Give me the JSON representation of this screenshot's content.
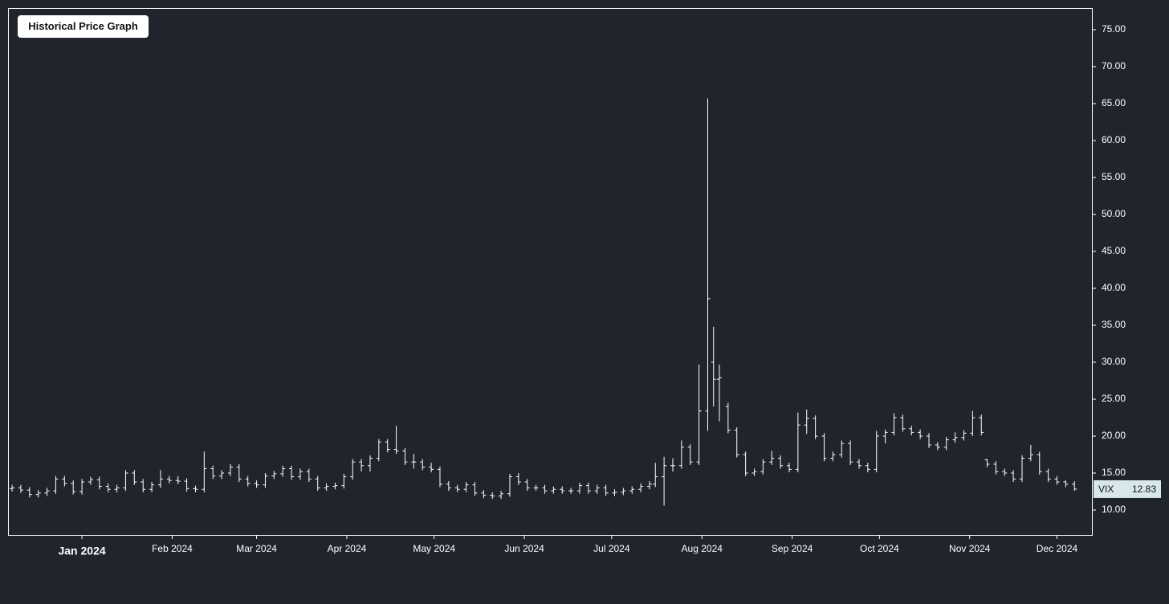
{
  "chart_data": {
    "type": "ohlc",
    "title": "Historical Price Graph",
    "series": [
      {
        "name": "VIX",
        "color": "#ffffff",
        "x": [
          -24,
          -21,
          -18,
          -15,
          -12,
          -9,
          -6,
          -3,
          0,
          3,
          6,
          9,
          12,
          15,
          18,
          21,
          24,
          27,
          30,
          33,
          36,
          39,
          42,
          45,
          48,
          51,
          54,
          57,
          60,
          63,
          66,
          69,
          72,
          75,
          78,
          81,
          84,
          87,
          90,
          93,
          96,
          99,
          102,
          105,
          108,
          111,
          114,
          117,
          120,
          123,
          126,
          129,
          132,
          135,
          138,
          141,
          144,
          147,
          150,
          153,
          156,
          159,
          162,
          165,
          168,
          171,
          174,
          177,
          180,
          183,
          186,
          189,
          192,
          195,
          197,
          200,
          203,
          206,
          209,
          212,
          215,
          217,
          219,
          222,
          225,
          228,
          231,
          234,
          237,
          240,
          243,
          246,
          249,
          252,
          255,
          258,
          261,
          264,
          267,
          270,
          273,
          276,
          279,
          282,
          285,
          288,
          291,
          294,
          297,
          300,
          303,
          306,
          309,
          311,
          314,
          317,
          320,
          323,
          326,
          329,
          332,
          335,
          338,
          341
        ],
        "open": [
          12.9,
          13.0,
          12.7,
          12.1,
          12.3,
          12.6,
          14.2,
          13.6,
          12.5,
          13.8,
          14.1,
          13.2,
          12.8,
          13.0,
          15.0,
          13.8,
          12.8,
          13.4,
          14.2,
          14.0,
          13.9,
          12.9,
          12.8,
          15.6,
          14.6,
          15.0,
          15.8,
          14.2,
          13.6,
          13.4,
          14.6,
          14.9,
          15.6,
          14.5,
          15.2,
          14.2,
          13.0,
          13.2,
          13.3,
          14.5,
          16.5,
          16.0,
          17.0,
          19.2,
          18.2,
          18.0,
          16.5,
          16.5,
          15.8,
          15.5,
          13.5,
          13.0,
          12.8,
          13.4,
          12.3,
          12.0,
          11.9,
          12.2,
          14.5,
          13.8,
          13.0,
          13.0,
          12.6,
          12.8,
          12.6,
          12.6,
          13.3,
          12.6,
          13.0,
          12.3,
          12.4,
          12.6,
          12.8,
          13.2,
          13.5,
          14.5,
          16.0,
          16.0,
          18.5,
          16.5,
          23.4,
          30.0,
          27.7,
          24.0,
          20.8,
          17.5,
          15.0,
          15.2,
          16.5,
          17.0,
          16.0,
          15.5,
          21.5,
          22.4,
          20.0,
          17.0,
          17.5,
          19.0,
          16.5,
          16.0,
          15.5,
          20.0,
          20.5,
          22.5,
          21.0,
          20.5,
          20.0,
          18.8,
          18.5,
          19.5,
          19.8,
          20.4,
          22.5,
          16.8,
          16.2,
          15.2,
          15.0,
          14.2,
          17.0,
          17.5,
          15.2,
          14.2,
          13.8,
          13.5
        ],
        "high": [
          13.4,
          13.4,
          13.1,
          12.7,
          13.0,
          14.6,
          14.6,
          14.0,
          14.2,
          14.5,
          14.5,
          13.6,
          13.4,
          15.4,
          15.4,
          14.2,
          13.8,
          15.4,
          14.6,
          14.6,
          14.3,
          13.3,
          17.9,
          16.0,
          15.4,
          16.2,
          16.2,
          14.6,
          14.0,
          15.0,
          15.3,
          16.0,
          16.0,
          15.6,
          15.6,
          14.6,
          13.6,
          13.7,
          14.9,
          16.9,
          16.9,
          17.4,
          19.6,
          19.6,
          21.4,
          18.4,
          17.6,
          16.9,
          16.4,
          15.9,
          13.9,
          13.4,
          13.8,
          13.8,
          12.7,
          12.4,
          12.6,
          14.9,
          15.0,
          14.2,
          13.4,
          13.4,
          13.2,
          13.2,
          13.0,
          13.7,
          13.7,
          13.4,
          13.4,
          12.8,
          13.0,
          13.2,
          13.6,
          13.9,
          16.4,
          17.2,
          17.0,
          19.4,
          18.9,
          29.7,
          65.7,
          34.8,
          29.7,
          24.5,
          21.2,
          17.9,
          15.6,
          16.9,
          18.0,
          17.4,
          16.4,
          23.2,
          23.6,
          22.8,
          20.4,
          17.9,
          19.4,
          19.4,
          16.9,
          16.4,
          20.7,
          20.9,
          23.1,
          22.9,
          21.4,
          20.9,
          20.4,
          19.2,
          19.9,
          20.5,
          20.8,
          23.4,
          22.9,
          16.9,
          16.6,
          15.6,
          15.4,
          17.4,
          18.8,
          17.9,
          15.6,
          14.6,
          14.0,
          13.9
        ],
        "low": [
          12.5,
          12.3,
          11.7,
          11.7,
          11.9,
          12.2,
          13.2,
          12.1,
          12.1,
          13.4,
          12.8,
          12.4,
          12.4,
          12.6,
          13.4,
          12.4,
          12.4,
          13.0,
          13.6,
          13.5,
          12.5,
          12.4,
          12.4,
          14.2,
          14.2,
          14.6,
          13.8,
          13.2,
          13.0,
          13.0,
          14.2,
          14.5,
          14.1,
          14.1,
          13.8,
          12.6,
          12.6,
          12.8,
          12.9,
          14.1,
          15.2,
          15.2,
          16.6,
          17.8,
          17.6,
          16.1,
          15.6,
          15.4,
          15.1,
          13.1,
          12.6,
          12.4,
          12.4,
          11.9,
          11.6,
          11.5,
          11.5,
          11.8,
          13.4,
          12.6,
          12.6,
          12.2,
          12.2,
          12.2,
          12.2,
          12.2,
          12.2,
          12.2,
          11.9,
          11.9,
          12.0,
          12.2,
          12.4,
          12.8,
          13.1,
          10.6,
          15.2,
          15.6,
          16.1,
          16.1,
          20.7,
          24.0,
          22.0,
          20.4,
          17.1,
          14.6,
          14.6,
          14.8,
          16.1,
          15.6,
          15.1,
          15.1,
          20.3,
          19.6,
          16.6,
          16.6,
          17.1,
          16.1,
          15.6,
          15.1,
          15.1,
          19.0,
          20.1,
          20.6,
          20.1,
          19.6,
          18.4,
          18.1,
          18.1,
          19.1,
          19.4,
          20.0,
          20.1,
          15.8,
          14.8,
          14.6,
          13.8,
          13.8,
          16.6,
          14.8,
          13.8,
          13.4,
          13.1,
          12.6
        ],
        "close": [
          13.0,
          12.7,
          12.1,
          12.3,
          12.6,
          14.2,
          13.6,
          12.5,
          13.8,
          14.1,
          13.2,
          12.8,
          13.0,
          15.0,
          13.8,
          12.8,
          13.4,
          14.2,
          14.0,
          13.9,
          12.9,
          12.8,
          15.6,
          14.6,
          15.0,
          15.8,
          14.2,
          13.6,
          13.4,
          14.6,
          14.9,
          15.6,
          14.5,
          15.2,
          14.2,
          13.0,
          13.2,
          13.3,
          14.5,
          16.5,
          16.0,
          17.0,
          19.2,
          18.2,
          18.0,
          16.5,
          16.5,
          15.8,
          15.5,
          13.5,
          13.0,
          12.8,
          13.4,
          12.3,
          12.0,
          11.9,
          12.2,
          14.5,
          13.8,
          13.0,
          13.0,
          12.6,
          12.8,
          12.6,
          12.6,
          13.3,
          12.6,
          13.0,
          12.3,
          12.4,
          12.6,
          12.8,
          13.2,
          13.5,
          14.5,
          16.0,
          16.0,
          18.5,
          16.5,
          23.4,
          38.6,
          27.7,
          27.9,
          20.8,
          17.5,
          15.0,
          15.2,
          16.5,
          17.0,
          16.0,
          15.5,
          21.5,
          22.4,
          20.0,
          17.0,
          17.5,
          19.0,
          16.5,
          16.0,
          15.5,
          20.0,
          20.5,
          22.5,
          21.0,
          20.5,
          20.0,
          18.8,
          18.5,
          19.5,
          19.8,
          20.4,
          22.5,
          20.5,
          16.2,
          15.2,
          15.0,
          14.2,
          17.0,
          17.5,
          15.2,
          14.2,
          13.8,
          13.5,
          12.83
        ]
      }
    ],
    "xlim": [
      -25.4,
      347
    ],
    "xticks": [
      {
        "value": 0,
        "label": "Jan 2024"
      },
      {
        "value": 31,
        "label": "Feb 2024"
      },
      {
        "value": 60,
        "label": "Mar 2024"
      },
      {
        "value": 91,
        "label": "Apr 2024"
      },
      {
        "value": 121,
        "label": "May 2024"
      },
      {
        "value": 152,
        "label": "Jun 2024"
      },
      {
        "value": 182,
        "label": "Jul 2024"
      },
      {
        "value": 213,
        "label": "Aug 2024"
      },
      {
        "value": 244,
        "label": "Sep 2024"
      },
      {
        "value": 274,
        "label": "Oct 2024"
      },
      {
        "value": 305,
        "label": "Nov 2024"
      },
      {
        "value": 335,
        "label": "Dec 2024"
      }
    ],
    "ylim": [
      6.63,
      77.93
    ],
    "yticks": [
      {
        "value": 10,
        "label": "10.00"
      },
      {
        "value": 15,
        "label": "15.00"
      },
      {
        "value": 20,
        "label": "20.00"
      },
      {
        "value": 25,
        "label": "25.00"
      },
      {
        "value": 30,
        "label": "30.00"
      },
      {
        "value": 35,
        "label": "35.00"
      },
      {
        "value": 40,
        "label": "40.00"
      },
      {
        "value": 45,
        "label": "45.00"
      },
      {
        "value": 50,
        "label": "50.00"
      },
      {
        "value": 55,
        "label": "55.00"
      },
      {
        "value": 60,
        "label": "60.00"
      },
      {
        "value": 65,
        "label": "65.00"
      },
      {
        "value": 70,
        "label": "70.00"
      },
      {
        "value": 75,
        "label": "75.00"
      }
    ]
  }
}
